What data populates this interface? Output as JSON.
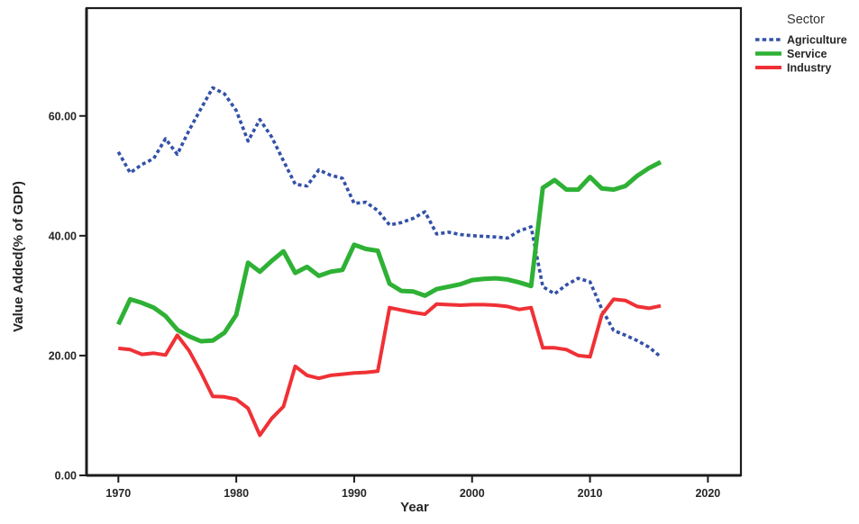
{
  "chart_data": {
    "type": "line",
    "title": "",
    "xlabel": "Year",
    "ylabel": "Value Added(% of GDP)",
    "legend_title": "Sector",
    "legend_position": "top-right-outside",
    "grid": false,
    "xlim": [
      1967.3,
      2022.8
    ],
    "ylim": [
      0,
      78
    ],
    "xticks": {
      "values": [
        1970,
        1980,
        1990,
        2000,
        2010,
        2020
      ],
      "labels": [
        "1970",
        "1980",
        "1990",
        "2000",
        "2010",
        "2020"
      ]
    },
    "yticks": {
      "values": [
        0,
        20,
        40,
        60
      ],
      "labels": [
        "0.00",
        "20.00",
        "40.00",
        "60.00"
      ]
    },
    "x": [
      1970,
      1971,
      1972,
      1973,
      1974,
      1975,
      1976,
      1977,
      1978,
      1979,
      1980,
      1981,
      1982,
      1983,
      1984,
      1985,
      1986,
      1987,
      1988,
      1989,
      1990,
      1991,
      1992,
      1993,
      1994,
      1995,
      1996,
      1997,
      1998,
      1999,
      2000,
      2001,
      2002,
      2003,
      2004,
      2005,
      2006,
      2007,
      2008,
      2009,
      2010,
      2011,
      2012,
      2013,
      2014,
      2015,
      2016
    ],
    "series": [
      {
        "name": "Agriculture",
        "color": "#3351a8",
        "style": "dotted",
        "line_width": 3.6,
        "values": [
          54.0,
          50.5,
          51.9,
          52.9,
          56.2,
          53.6,
          57.6,
          61.2,
          64.7,
          63.7,
          60.9,
          55.8,
          59.4,
          56.5,
          52.5,
          48.6,
          48.3,
          51.0,
          50.1,
          49.6,
          45.4,
          45.6,
          44.2,
          41.8,
          42.2,
          42.9,
          44.0,
          40.3,
          40.6,
          40.2,
          40.0,
          39.9,
          39.8,
          39.6,
          40.8,
          41.5,
          31.5,
          30.3,
          31.8,
          32.9,
          32.3,
          27.8,
          24.2,
          23.4,
          22.5,
          21.4,
          19.8
        ]
      },
      {
        "name": "Service",
        "color": "#2eb135",
        "style": "solid",
        "line_width": 5,
        "values": [
          25.2,
          29.4,
          28.8,
          28.0,
          26.6,
          24.3,
          23.2,
          22.4,
          22.5,
          23.8,
          26.8,
          35.5,
          34.0,
          35.8,
          37.4,
          33.8,
          34.8,
          33.3,
          34.0,
          34.3,
          38.5,
          37.8,
          37.5,
          32.0,
          30.8,
          30.7,
          30.0,
          31.1,
          31.5,
          31.9,
          32.6,
          32.8,
          32.9,
          32.7,
          32.2,
          31.6,
          48.0,
          49.3,
          47.7,
          47.7,
          49.8,
          47.9,
          47.7,
          48.3,
          50.0,
          51.3,
          52.3
        ]
      },
      {
        "name": "Industry",
        "color": "#ef3136",
        "style": "solid",
        "line_width": 4,
        "values": [
          21.2,
          21.0,
          20.2,
          20.4,
          20.1,
          23.4,
          20.8,
          17.2,
          13.2,
          13.1,
          12.7,
          11.2,
          6.7,
          9.5,
          11.5,
          18.2,
          16.7,
          16.2,
          16.7,
          16.9,
          17.1,
          17.2,
          17.4,
          28.0,
          27.6,
          27.2,
          26.9,
          28.6,
          28.5,
          28.4,
          28.5,
          28.5,
          28.4,
          28.2,
          27.7,
          28.0,
          21.3,
          21.3,
          21.0,
          20.0,
          19.8,
          26.8,
          29.4,
          29.2,
          28.2,
          27.9,
          28.3
        ]
      }
    ],
    "colors": {
      "frame": "#1c1c1c",
      "text": "#262626"
    }
  }
}
